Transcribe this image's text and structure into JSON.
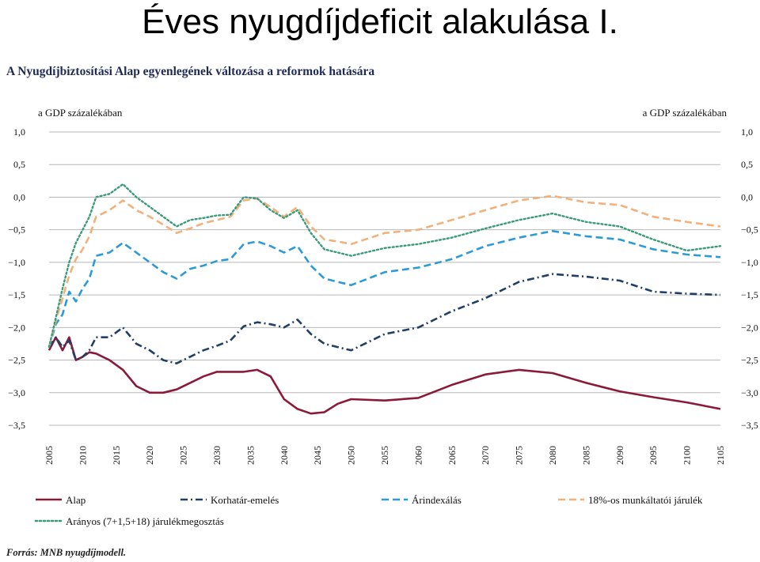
{
  "slide_title": "Éves nyugdíjdeficit alakulása I.",
  "source": "Forrás: MNB nyugdíjmodell.",
  "chart_data": {
    "type": "line",
    "title": "A Nyugdíjbiztosítási Alap egyenlegének változása a reformok hatására",
    "ylabel_left": "a GDP százalékában",
    "ylabel_right": "a GDP százalékában",
    "ylim": [
      -3.5,
      1.0
    ],
    "yticks": [
      1.0,
      0.5,
      0.0,
      -0.5,
      -1.0,
      -1.5,
      -2.0,
      -2.5,
      -3.0,
      -3.5
    ],
    "ytick_labels": [
      "1,0",
      "0,5",
      "0,0",
      "−0,5",
      "−1,0",
      "−1,5",
      "−2,0",
      "−2,5",
      "−3,0",
      "−3,5"
    ],
    "xlim": [
      2005,
      2105
    ],
    "xticks": [
      "2005",
      "2010",
      "2015",
      "2020",
      "2025",
      "2030",
      "2035",
      "2040",
      "2045",
      "2050",
      "2055",
      "2060",
      "2065",
      "2070",
      "2075",
      "2080",
      "2085",
      "2090",
      "2095",
      "2100",
      "2105"
    ],
    "grid": true,
    "legend_position": "bottom",
    "series": [
      {
        "name": "Alap",
        "color": "#8b1a3a",
        "style": "solid",
        "x": [
          2005,
          2006,
          2007,
          2008,
          2009,
          2010,
          2011,
          2012,
          2014,
          2016,
          2018,
          2020,
          2022,
          2024,
          2026,
          2028,
          2030,
          2032,
          2034,
          2036,
          2038,
          2040,
          2042,
          2044,
          2046,
          2048,
          2050,
          2055,
          2060,
          2065,
          2070,
          2075,
          2080,
          2085,
          2090,
          2095,
          2100,
          2105
        ],
        "values": [
          -2.35,
          -2.15,
          -2.35,
          -2.15,
          -2.5,
          -2.45,
          -2.38,
          -2.4,
          -2.5,
          -2.65,
          -2.9,
          -3.0,
          -3.0,
          -2.95,
          -2.85,
          -2.75,
          -2.68,
          -2.68,
          -2.68,
          -2.65,
          -2.75,
          -3.1,
          -3.25,
          -3.32,
          -3.3,
          -3.17,
          -3.1,
          -3.12,
          -3.08,
          -2.88,
          -2.72,
          -2.65,
          -2.7,
          -2.85,
          -2.98,
          -3.07,
          -3.15,
          -3.25
        ]
      },
      {
        "name": "Korhatár-emelés",
        "color": "#1f3f66",
        "style": "dashdot",
        "x": [
          2005,
          2006,
          2007,
          2008,
          2009,
          2010,
          2011,
          2012,
          2014,
          2016,
          2018,
          2020,
          2022,
          2024,
          2026,
          2028,
          2030,
          2032,
          2034,
          2036,
          2038,
          2040,
          2042,
          2044,
          2046,
          2048,
          2050,
          2055,
          2060,
          2065,
          2070,
          2075,
          2080,
          2085,
          2090,
          2095,
          2100,
          2105
        ],
        "values": [
          -2.3,
          -2.15,
          -2.3,
          -2.2,
          -2.5,
          -2.45,
          -2.35,
          -2.15,
          -2.15,
          -2.0,
          -2.25,
          -2.35,
          -2.5,
          -2.55,
          -2.45,
          -2.35,
          -2.28,
          -2.2,
          -1.98,
          -1.92,
          -1.95,
          -2.0,
          -1.88,
          -2.1,
          -2.25,
          -2.3,
          -2.35,
          -2.1,
          -2.0,
          -1.75,
          -1.55,
          -1.3,
          -1.18,
          -1.22,
          -1.28,
          -1.45,
          -1.48,
          -1.5
        ]
      },
      {
        "name": "Árindexálás",
        "color": "#2a9ad8",
        "style": "dashed",
        "x": [
          2005,
          2006,
          2007,
          2008,
          2009,
          2010,
          2011,
          2012,
          2014,
          2016,
          2018,
          2020,
          2022,
          2024,
          2026,
          2028,
          2030,
          2032,
          2034,
          2036,
          2038,
          2040,
          2042,
          2044,
          2046,
          2048,
          2050,
          2055,
          2060,
          2065,
          2070,
          2075,
          2080,
          2085,
          2090,
          2095,
          2100,
          2105
        ],
        "values": [
          -2.3,
          -1.95,
          -1.8,
          -1.45,
          -1.6,
          -1.4,
          -1.25,
          -0.9,
          -0.85,
          -0.7,
          -0.85,
          -1.0,
          -1.15,
          -1.25,
          -1.1,
          -1.05,
          -0.98,
          -0.95,
          -0.72,
          -0.68,
          -0.75,
          -0.85,
          -0.75,
          -1.05,
          -1.25,
          -1.3,
          -1.35,
          -1.15,
          -1.08,
          -0.95,
          -0.75,
          -0.62,
          -0.52,
          -0.6,
          -0.65,
          -0.8,
          -0.88,
          -0.92
        ]
      },
      {
        "name": "18%-os munkáltatói járulék",
        "color": "#f2b07a",
        "style": "dashed",
        "x": [
          2005,
          2006,
          2007,
          2008,
          2009,
          2010,
          2011,
          2012,
          2014,
          2016,
          2018,
          2020,
          2022,
          2024,
          2026,
          2028,
          2030,
          2032,
          2034,
          2036,
          2038,
          2040,
          2042,
          2044,
          2046,
          2048,
          2050,
          2055,
          2060,
          2065,
          2070,
          2075,
          2080,
          2085,
          2090,
          2095,
          2100,
          2105
        ],
        "values": [
          -2.3,
          -1.9,
          -1.55,
          -1.2,
          -0.95,
          -0.8,
          -0.6,
          -0.3,
          -0.2,
          -0.05,
          -0.2,
          -0.3,
          -0.42,
          -0.55,
          -0.48,
          -0.4,
          -0.35,
          -0.3,
          -0.05,
          -0.02,
          -0.15,
          -0.3,
          -0.15,
          -0.45,
          -0.65,
          -0.68,
          -0.72,
          -0.55,
          -0.5,
          -0.35,
          -0.2,
          -0.05,
          0.02,
          -0.08,
          -0.12,
          -0.3,
          -0.38,
          -0.45
        ]
      },
      {
        "name": "Arányos (7+1,5+18) járulékmegosztás",
        "color": "#3a9a7a",
        "style": "dotted",
        "x": [
          2005,
          2006,
          2007,
          2008,
          2009,
          2010,
          2011,
          2012,
          2014,
          2016,
          2018,
          2020,
          2022,
          2024,
          2026,
          2028,
          2030,
          2032,
          2034,
          2036,
          2038,
          2040,
          2042,
          2044,
          2046,
          2048,
          2050,
          2055,
          2060,
          2065,
          2070,
          2075,
          2080,
          2085,
          2090,
          2095,
          2100,
          2105
        ],
        "values": [
          -2.3,
          -1.85,
          -1.4,
          -1.0,
          -0.7,
          -0.5,
          -0.3,
          0.0,
          0.05,
          0.2,
          0.0,
          -0.15,
          -0.3,
          -0.45,
          -0.35,
          -0.32,
          -0.28,
          -0.27,
          0.0,
          -0.02,
          -0.2,
          -0.32,
          -0.2,
          -0.55,
          -0.8,
          -0.85,
          -0.9,
          -0.78,
          -0.72,
          -0.62,
          -0.48,
          -0.35,
          -0.25,
          -0.38,
          -0.45,
          -0.65,
          -0.82,
          -0.75
        ]
      }
    ]
  }
}
